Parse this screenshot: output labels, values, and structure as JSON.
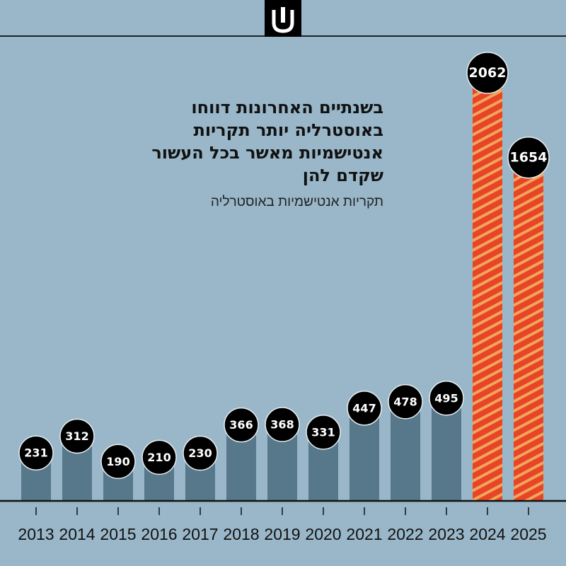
{
  "logo": {
    "icon": "publisher-logo-icon"
  },
  "chart_data": {
    "type": "bar",
    "title": "בשנתיים האחרונות דווחו באוסטרליה יותר תקריות אנטישמיות מאשר בכל העשור שקדם להן",
    "subtitle": "תקריות אנטישמיות באוסטרליה",
    "xlabel": "",
    "ylabel": "",
    "categories": [
      "2013",
      "2014",
      "2015",
      "2016",
      "2017",
      "2018",
      "2019",
      "2020",
      "2021",
      "2022",
      "2023",
      "2024",
      "2025"
    ],
    "values": [
      231,
      312,
      190,
      210,
      230,
      366,
      368,
      331,
      447,
      478,
      495,
      2062,
      1654
    ],
    "highlighted": [
      "2024",
      "2025"
    ],
    "ylim": [
      0,
      2062
    ],
    "grid": false,
    "colors": {
      "background": "#99b7c9",
      "bar": "#57788b",
      "highlight": "#e84427",
      "highlight_stripe": "#f0a65a",
      "label_circle": "#000000",
      "label_text": "#ffffff",
      "axis": "#111111"
    }
  }
}
